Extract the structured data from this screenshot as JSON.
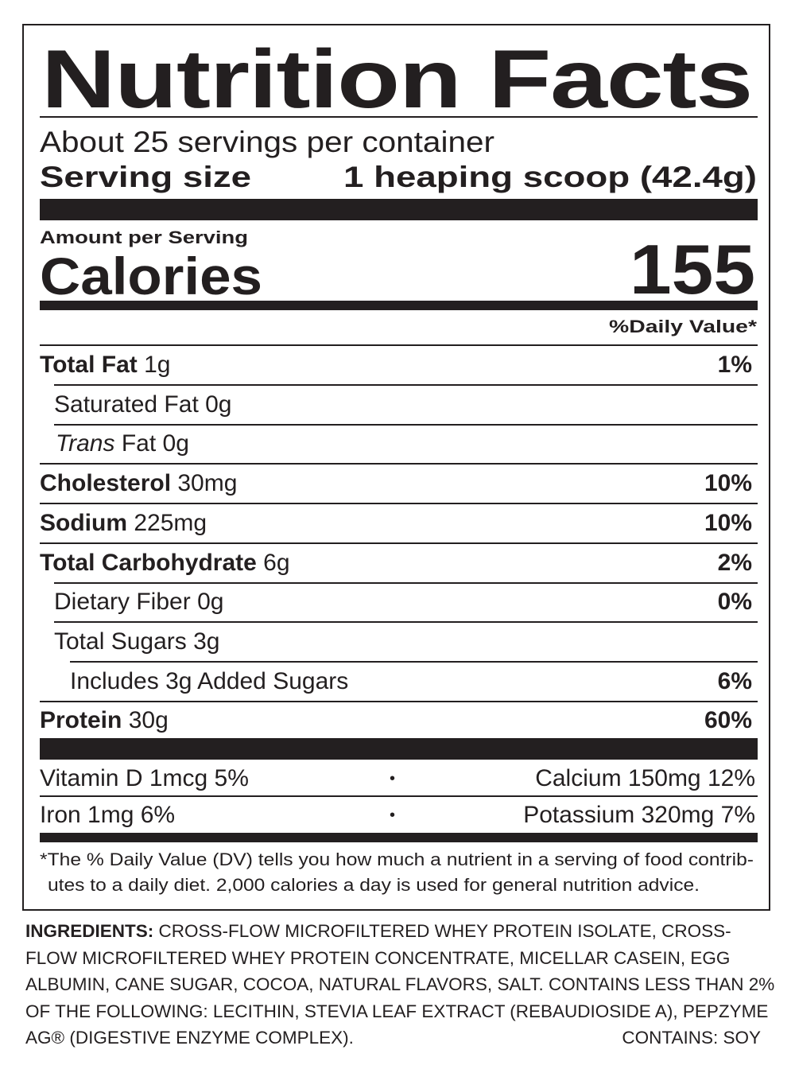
{
  "title": "Nutrition Facts",
  "servings_per_container": "About 25 servings per container",
  "serving_size_label": "Serving size",
  "serving_size_value": "1 heaping scoop (42.4g)",
  "amount_per_serving": "Amount per Serving",
  "calories_label": "Calories",
  "calories_value": "155",
  "daily_value_header": "%Daily Value*",
  "nutrients": [
    {
      "name": "Total Fat",
      "amount": "1g",
      "dv": "1%"
    },
    {
      "name": "Saturated Fat",
      "amount": "0g",
      "dv": ""
    },
    {
      "name_italic": "Trans",
      "name": "Fat",
      "amount": "0g",
      "dv": ""
    },
    {
      "name": "Cholesterol",
      "amount": "30mg",
      "dv": "10%"
    },
    {
      "name": "Sodium",
      "amount": "225mg",
      "dv": "10%"
    },
    {
      "name": "Total Carbohydrate",
      "amount": "6g",
      "dv": "2%"
    },
    {
      "name": "Dietary Fiber",
      "amount": "0g",
      "dv": "0%"
    },
    {
      "name": "Total Sugars",
      "amount": "3g",
      "dv": ""
    },
    {
      "name": "Includes 3g Added Sugars",
      "amount": "",
      "dv": "6%"
    },
    {
      "name": "Protein",
      "amount": "30g",
      "dv": "60%"
    }
  ],
  "vitamins": [
    {
      "left": "Vitamin D 1mcg 5%",
      "right": "Calcium 150mg 12%"
    },
    {
      "left": "Iron 1mg 6%",
      "right": "Potassium 320mg 7%"
    }
  ],
  "bullet": "•",
  "footnote_line1": "*The % Daily Value (DV) tells you how much a nutrient in a serving of food contrib-",
  "footnote_line2": "utes to a daily diet. 2,000 calories a day is used for general nutrition advice.",
  "ingredients_label": "INGREDIENTS:",
  "ingredients_text": "CROSS-FLOW MICROFILTERED WHEY PROTEIN ISOLATE, CROSS-FLOW MICROFILTERED WHEY PROTEIN CONCENTRATE, MICELLAR CASEIN, EGG ALBUMIN, CANE SUGAR, COCOA, NATURAL FLAVORS, SALT. CONTAINS LESS THAN 2% OF THE FOLLOWING: LECITHIN, STEVIA LEAF EXTRACT (REBAUDIOSIDE A), PEPZYME AG® (DIGESTIVE ENZYME COMPLEX).",
  "contains": "CONTAINS: SOY"
}
